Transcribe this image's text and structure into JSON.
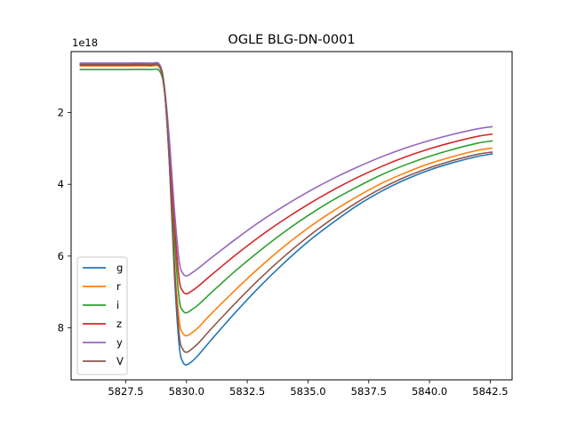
{
  "chart_data": {
    "type": "line",
    "title": "OGLE BLG-DN-0001",
    "xlabel": "",
    "ylabel": "",
    "y_offset_text": "1e18",
    "y_inverted": true,
    "xlim": [
      5825.25,
      5843.4
    ],
    "ylim": [
      9.45,
      0.3
    ],
    "x_ticks": [
      5825.0,
      5827.5,
      5830.0,
      5832.5,
      5835.0,
      5837.5,
      5840.0,
      5842.5
    ],
    "x_tick_labels": [
      "5825.0",
      "5827.5",
      "5830.0",
      "5832.5",
      "5835.0",
      "5837.5",
      "5840.0",
      "5842.5"
    ],
    "y_ticks": [
      2,
      4,
      6,
      8
    ],
    "y_tick_labels": [
      "2",
      "4",
      "6",
      "8"
    ],
    "grid": false,
    "legend_position": "lower-left",
    "x": [
      5825.6,
      5826.5,
      5827.5,
      5828.5,
      5828.9,
      5829.1,
      5829.3,
      5829.5,
      5829.7,
      5829.85,
      5830.0,
      5830.2,
      5830.5,
      5831.0,
      5832.0,
      5833.0,
      5834.0,
      5835.0,
      5836.0,
      5837.0,
      5838.0,
      5839.0,
      5840.0,
      5841.0,
      5842.0,
      5842.6
    ],
    "series": [
      {
        "name": "g",
        "color": "#1f77b4",
        "values": [
          0.65,
          0.65,
          0.65,
          0.65,
          0.7,
          1.4,
          3.5,
          6.5,
          8.5,
          8.95,
          9.03,
          8.95,
          8.75,
          8.35,
          7.58,
          6.86,
          6.2,
          5.6,
          5.08,
          4.6,
          4.2,
          3.87,
          3.6,
          3.39,
          3.22,
          3.15
        ]
      },
      {
        "name": "r",
        "color": "#ff7f0e",
        "values": [
          0.7,
          0.7,
          0.7,
          0.7,
          0.75,
          1.42,
          3.4,
          6.1,
          7.8,
          8.15,
          8.22,
          8.15,
          7.98,
          7.62,
          6.95,
          6.32,
          5.74,
          5.22,
          4.76,
          4.35,
          3.98,
          3.68,
          3.42,
          3.22,
          3.05,
          2.99
        ]
      },
      {
        "name": "i",
        "color": "#2ca02c",
        "values": [
          0.8,
          0.8,
          0.8,
          0.8,
          0.85,
          1.45,
          3.2,
          5.5,
          7.2,
          7.52,
          7.58,
          7.5,
          7.35,
          7.03,
          6.42,
          5.86,
          5.34,
          4.87,
          4.45,
          4.08,
          3.74,
          3.46,
          3.22,
          3.02,
          2.85,
          2.79
        ]
      },
      {
        "name": "z",
        "color": "#d62728",
        "values": [
          0.68,
          0.68,
          0.68,
          0.68,
          0.73,
          1.4,
          3.0,
          5.1,
          6.65,
          6.98,
          7.05,
          6.98,
          6.83,
          6.54,
          5.98,
          5.46,
          4.99,
          4.56,
          4.17,
          3.82,
          3.51,
          3.24,
          3.01,
          2.82,
          2.66,
          2.6
        ]
      },
      {
        "name": "y",
        "color": "#9467bd",
        "values": [
          0.62,
          0.62,
          0.62,
          0.62,
          0.67,
          1.33,
          2.8,
          4.7,
          6.15,
          6.48,
          6.55,
          6.48,
          6.33,
          6.06,
          5.54,
          5.05,
          4.61,
          4.21,
          3.85,
          3.53,
          3.24,
          2.99,
          2.78,
          2.6,
          2.45,
          2.39
        ]
      },
      {
        "name": "V",
        "color": "#8c564b",
        "values": [
          0.67,
          0.67,
          0.67,
          0.67,
          0.72,
          1.42,
          3.45,
          6.3,
          8.2,
          8.6,
          8.68,
          8.6,
          8.42,
          8.04,
          7.32,
          6.64,
          6.02,
          5.46,
          4.96,
          4.51,
          4.12,
          3.8,
          3.54,
          3.33,
          3.16,
          3.1
        ]
      }
    ]
  }
}
